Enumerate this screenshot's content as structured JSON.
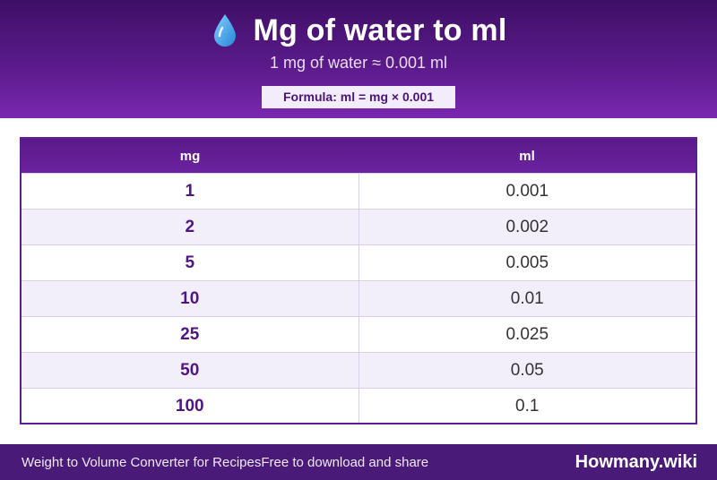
{
  "header": {
    "title": "Mg of water to ml",
    "subtitle": "1 mg of water ≈ 0.001 ml",
    "formula": "Formula: ml = mg × 0.001",
    "icon": "water-drop-icon"
  },
  "table": {
    "columns": [
      "mg",
      "ml"
    ],
    "rows": [
      {
        "mg": "1",
        "ml": "0.001"
      },
      {
        "mg": "2",
        "ml": "0.002"
      },
      {
        "mg": "5",
        "ml": "0.005"
      },
      {
        "mg": "10",
        "ml": "0.01"
      },
      {
        "mg": "25",
        "ml": "0.025"
      },
      {
        "mg": "50",
        "ml": "0.05"
      },
      {
        "mg": "100",
        "ml": "0.1"
      }
    ]
  },
  "footer": {
    "left_text_1": "Weight to Volume Converter for Recipes",
    "left_text_2": "Free to download and share",
    "brand": "Howmany.wiki"
  },
  "colors": {
    "header_dark": "#3f0f66",
    "header_light": "#7a28b0",
    "accent_purple": "#4e1680",
    "drop_blue": "#3aa0e8"
  }
}
